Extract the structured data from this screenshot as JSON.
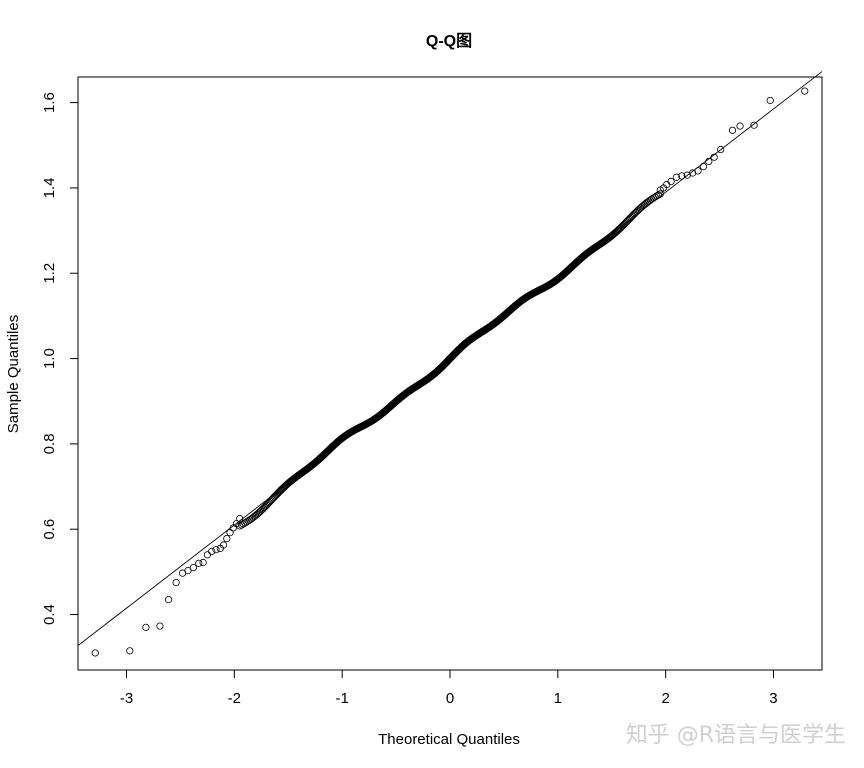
{
  "chart_data": {
    "type": "scatter",
    "title": "Q-Q图",
    "xlabel": "Theoretical Quantiles",
    "ylabel": "Sample Quantiles",
    "xlim": [
      -3.45,
      3.45
    ],
    "ylim": [
      0.27,
      1.66
    ],
    "x_ticks": [
      -3,
      -2,
      -1,
      0,
      1,
      2,
      3
    ],
    "x_tick_labels": [
      "-3",
      "-2",
      "-1",
      "0",
      "1",
      "2",
      "3"
    ],
    "y_ticks": [
      0.4,
      0.6,
      0.8,
      1.0,
      1.2,
      1.4,
      1.6
    ],
    "y_tick_labels": [
      "0.4",
      "0.6",
      "0.8",
      "1.0",
      "1.2",
      "1.4",
      "1.6"
    ],
    "grid": false,
    "legend": "none",
    "reference_line": {
      "intercept": 1.0,
      "slope": 0.195
    },
    "n_points": 1000,
    "sample_sd": 0.195,
    "lower_tail_points": [
      [
        -3.29,
        0.31
      ],
      [
        -2.97,
        0.315
      ],
      [
        -2.82,
        0.37
      ],
      [
        -2.69,
        0.373
      ],
      [
        -2.61,
        0.435
      ],
      [
        -2.54,
        0.475
      ],
      [
        -2.48,
        0.497
      ],
      [
        -2.43,
        0.503
      ],
      [
        -2.38,
        0.51
      ],
      [
        -2.33,
        0.52
      ],
      [
        -2.29,
        0.522
      ],
      [
        -2.25,
        0.54
      ],
      [
        -2.21,
        0.548
      ],
      [
        -2.17,
        0.552
      ],
      [
        -2.13,
        0.555
      ],
      [
        -2.1,
        0.563
      ],
      [
        -2.07,
        0.578
      ],
      [
        -2.04,
        0.592
      ],
      [
        -2.01,
        0.603
      ],
      [
        -1.98,
        0.613
      ],
      [
        -1.95,
        0.625
      ]
    ],
    "upper_tail_points": [
      [
        1.95,
        1.395
      ],
      [
        1.98,
        1.4
      ],
      [
        2.01,
        1.408
      ],
      [
        2.05,
        1.415
      ],
      [
        2.1,
        1.425
      ],
      [
        2.15,
        1.428
      ],
      [
        2.2,
        1.43
      ],
      [
        2.25,
        1.435
      ],
      [
        2.3,
        1.44
      ],
      [
        2.35,
        1.45
      ],
      [
        2.4,
        1.462
      ],
      [
        2.45,
        1.472
      ],
      [
        2.51,
        1.49
      ],
      [
        2.62,
        1.535
      ],
      [
        2.69,
        1.545
      ],
      [
        2.82,
        1.547
      ],
      [
        2.97,
        1.605
      ],
      [
        3.29,
        1.627
      ]
    ]
  },
  "watermark": {
    "text": "知乎 @R语言与医学生",
    "color": "#cfcfcf"
  }
}
